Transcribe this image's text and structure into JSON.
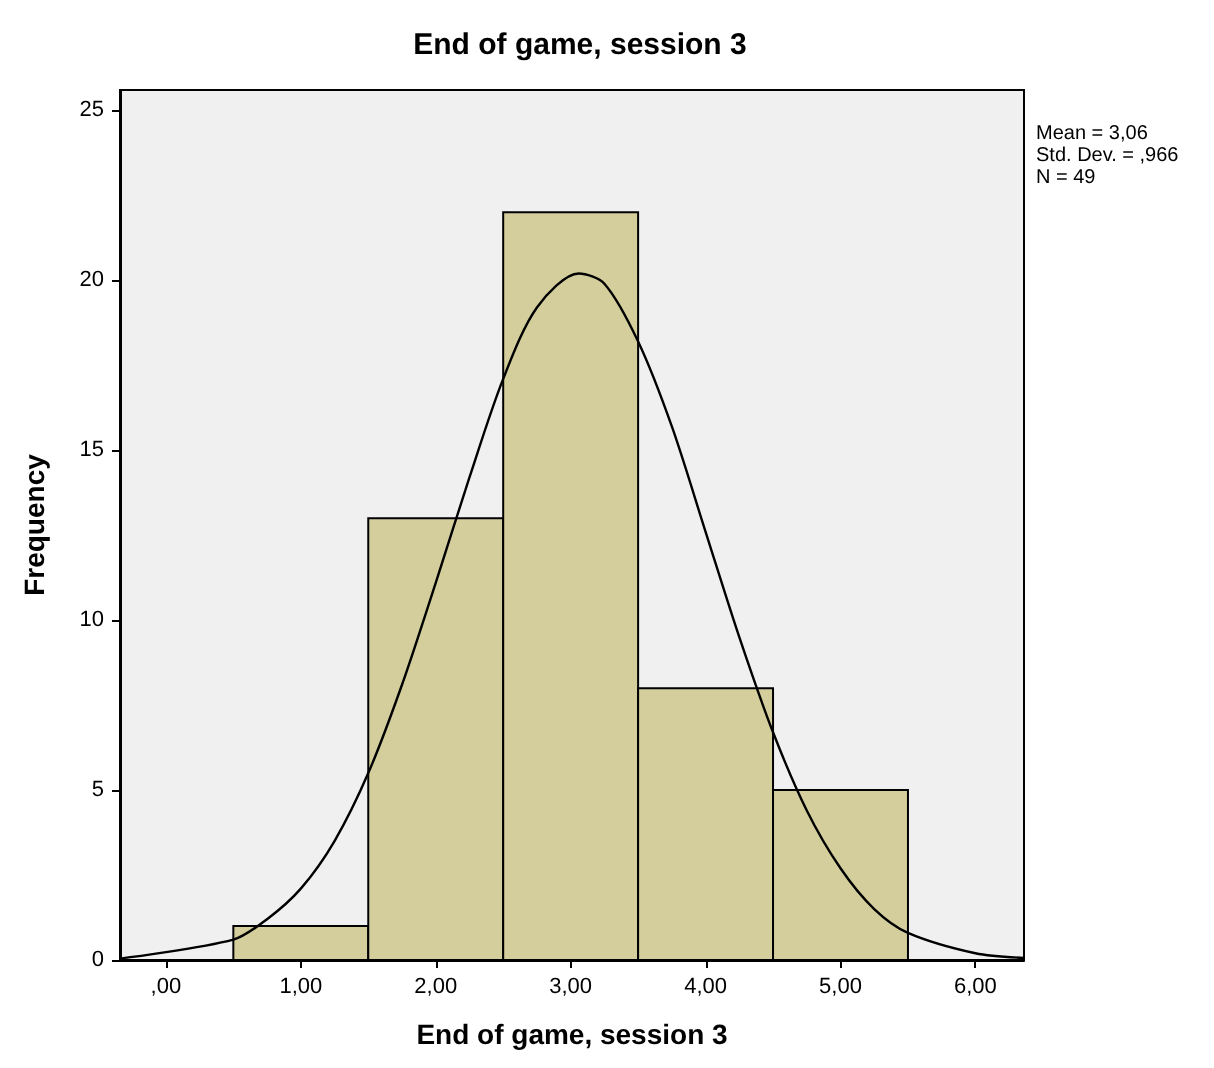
{
  "chart_data": {
    "type": "histogram",
    "title": "End of game, session 3",
    "xlabel": "End of game, session 3",
    "ylabel": "Frequency",
    "bins": [
      0.5,
      1.5,
      2.5,
      3.5,
      4.5,
      5.5
    ],
    "values": [
      1,
      13,
      22,
      8,
      5
    ],
    "color": "#d3ce9b",
    "series": [
      {
        "type": "line",
        "color": "#000000",
        "x": [
          -0.34,
          0.5,
          0.75,
          1.0,
          1.25,
          1.5,
          1.75,
          2.0,
          2.25,
          2.5,
          2.75,
          3.06,
          3.25,
          3.5,
          3.75,
          4.0,
          4.25,
          4.5,
          4.75,
          5.0,
          5.25,
          5.5,
          6.0,
          6.36
        ],
        "values": [
          0.04,
          0.6,
          1.2,
          2.1,
          3.5,
          5.5,
          8.1,
          11.1,
          14.2,
          17.1,
          19.2,
          20.2,
          19.9,
          18.2,
          15.7,
          12.6,
          9.5,
          6.7,
          4.4,
          2.7,
          1.5,
          0.8,
          0.2,
          0.06
        ]
      }
    ],
    "xlim": [
      -0.34,
      6.36
    ],
    "xticks": [
      {
        "value": 0,
        "label": ",00"
      },
      {
        "value": 1,
        "label": "1,00"
      },
      {
        "value": 2,
        "label": "2,00"
      },
      {
        "value": 3,
        "label": "3,00"
      },
      {
        "value": 4,
        "label": "4,00"
      },
      {
        "value": 5,
        "label": "5,00"
      },
      {
        "value": 6,
        "label": "6,00"
      }
    ],
    "ylim": [
      0,
      25.6
    ],
    "yticks": [
      0,
      5,
      10,
      15,
      20,
      25
    ],
    "grid": false,
    "marker": "none",
    "annotations": [
      "Mean = 3,06",
      "Std. Dev. = ,966",
      "N = 49"
    ]
  }
}
